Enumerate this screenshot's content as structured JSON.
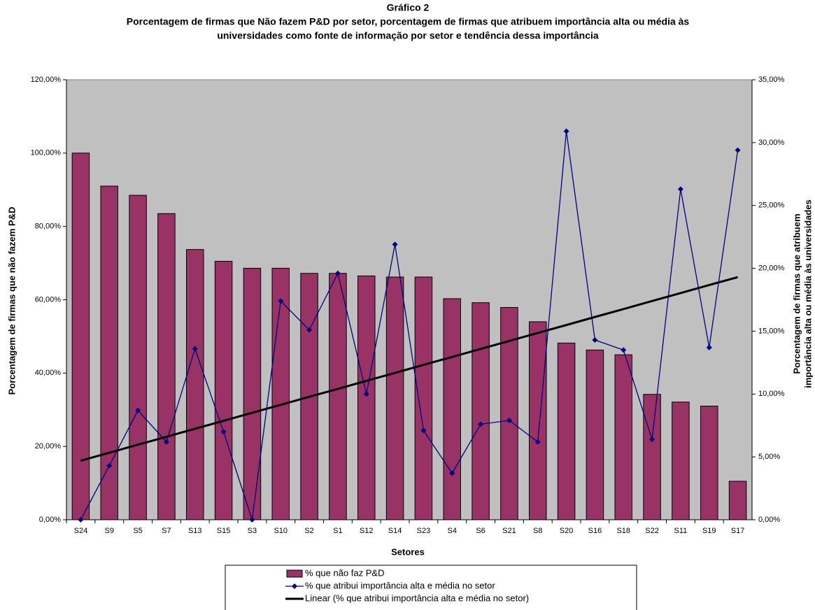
{
  "chart_data": {
    "type": "bar-line",
    "title": "Gráfico 2",
    "subtitle": [
      "Porcentagem de firmas que Não fazem P&D por setor, porcentagem de firmas que atribuem importância alta ou média às",
      "universidades como fonte de informação por setor e tendência dessa importância"
    ],
    "x_label": "Setores",
    "y_label": "Porcentagem de firmas que não fazem P&D",
    "y2_label": [
      "Porcentagem de firmas que atribuem",
      "importância alta ou média às universidades"
    ],
    "categories": [
      "S24",
      "S9",
      "S5",
      "S7",
      "S13",
      "S15",
      "S3",
      "S10",
      "S2",
      "S1",
      "S12",
      "S14",
      "S23",
      "S4",
      "S6",
      "S21",
      "S8",
      "S20",
      "S16",
      "S18",
      "S22",
      "S11",
      "S19",
      "S17"
    ],
    "ylim": [
      0,
      120
    ],
    "yticks": [
      {
        "value": 0,
        "label": "0,00%"
      },
      {
        "value": 20,
        "label": "20,00%"
      },
      {
        "value": 40,
        "label": "40,00%"
      },
      {
        "value": 60,
        "label": "60,00%"
      },
      {
        "value": 80,
        "label": "80,00%"
      },
      {
        "value": 100,
        "label": "100,00%"
      },
      {
        "value": 120,
        "label": "120,00%"
      }
    ],
    "y2lim": [
      0,
      35
    ],
    "y2ticks": [
      {
        "value": 0,
        "label": "0,00%"
      },
      {
        "value": 5,
        "label": "5,00%"
      },
      {
        "value": 10,
        "label": "10,00%"
      },
      {
        "value": 15,
        "label": "15,00%"
      },
      {
        "value": 20,
        "label": "20,00%"
      },
      {
        "value": 25,
        "label": "25,00%"
      },
      {
        "value": 30,
        "label": "30,00%"
      },
      {
        "value": 35,
        "label": "35,00%"
      }
    ],
    "plot_background": "#c0c0c0",
    "series": [
      {
        "name": "% que  não faz P&D",
        "type": "bar",
        "color": "#993366",
        "values": [
          100,
          91,
          88.5,
          83.5,
          73.7,
          70.5,
          68.6,
          68.6,
          67.2,
          67.2,
          66.5,
          66.2,
          66.2,
          60.3,
          59.2,
          57.9,
          54,
          48.2,
          46.3,
          45,
          34.2,
          32.1,
          31,
          10.5
        ]
      },
      {
        "name": "% que atribui importância alta e média no setor",
        "type": "line",
        "axis": "y2",
        "color": "#000080",
        "values": [
          0,
          4.3,
          8.7,
          6.2,
          13.6,
          7,
          0,
          17.4,
          15.1,
          19.6,
          10,
          21.9,
          7.1,
          3.7,
          7.6,
          7.9,
          6.2,
          30.9,
          14.3,
          13.5,
          6.4,
          26.3,
          13.7,
          29.4
        ]
      },
      {
        "name": "Linear (% que atribui importância alta e média no setor)",
        "type": "trend",
        "axis": "y2",
        "color": "#000000",
        "values": [
          4.7,
          5.33,
          5.97,
          6.6,
          7.24,
          7.87,
          8.51,
          9.14,
          9.78,
          10.41,
          11.05,
          11.68,
          12.32,
          12.95,
          13.59,
          14.22,
          14.86,
          15.49,
          16.13,
          16.76,
          17.4,
          18.03,
          18.67,
          19.3
        ]
      }
    ]
  }
}
